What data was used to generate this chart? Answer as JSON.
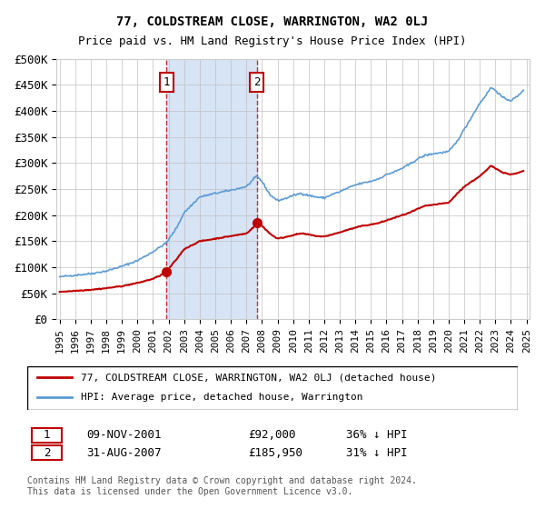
{
  "title": "77, COLDSTREAM CLOSE, WARRINGTON, WA2 0LJ",
  "subtitle": "Price paid vs. HM Land Registry's House Price Index (HPI)",
  "legend_line1": "77, COLDSTREAM CLOSE, WARRINGTON, WA2 0LJ (detached house)",
  "legend_line2": "HPI: Average price, detached house, Warrington",
  "annotation1_label": "1",
  "annotation1_date": "09-NOV-2001",
  "annotation1_price": "£92,000",
  "annotation1_hpi": "36% ↓ HPI",
  "annotation2_label": "2",
  "annotation2_date": "31-AUG-2007",
  "annotation2_price": "£185,950",
  "annotation2_hpi": "31% ↓ HPI",
  "footnote": "Contains HM Land Registry data © Crown copyright and database right 2024.\nThis data is licensed under the Open Government Licence v3.0.",
  "sale1_date_num": 2001.86,
  "sale1_price": 92000,
  "sale2_date_num": 2007.66,
  "sale2_price": 185950,
  "hpi_color": "#5b9bd5",
  "price_color": "#c00000",
  "shade_color": "#d6e4f5",
  "grid_color": "#c0c0c0",
  "bg_color": "#ffffff",
  "ylim_max": 500000,
  "ytick_values": [
    0,
    50000,
    100000,
    150000,
    200000,
    250000,
    300000,
    350000,
    400000,
    450000,
    500000
  ],
  "xlabel_start": 1995,
  "xlabel_end": 2025
}
